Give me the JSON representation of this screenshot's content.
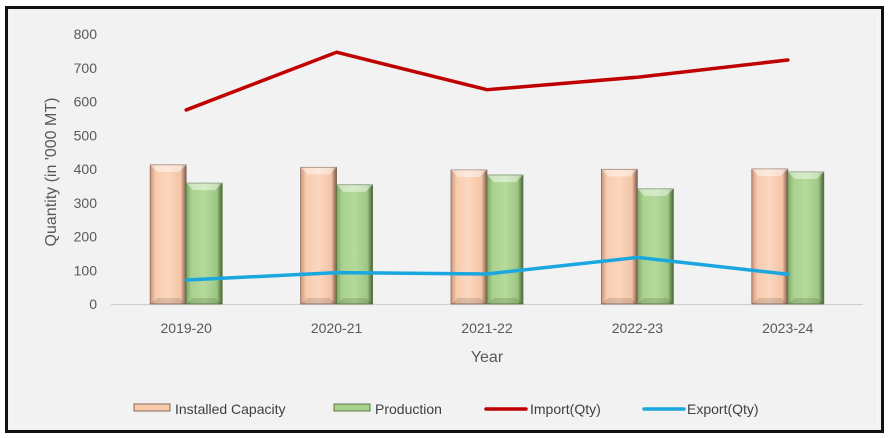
{
  "chart_data": {
    "type": "bar",
    "title": "",
    "xlabel": "Year",
    "ylabel": "Quantity (in '000 MT)",
    "ylim": [
      0,
      800
    ],
    "yticks": [
      0,
      100,
      200,
      300,
      400,
      500,
      600,
      700,
      800
    ],
    "ytick_labels": [
      "0",
      "100",
      "200",
      "300",
      "400",
      "500",
      "600",
      "700",
      "800"
    ],
    "grid": false,
    "categories": [
      "2019-20",
      "2020-21",
      "2021-22",
      "2022-23",
      "2023-24"
    ],
    "series": [
      {
        "name": "Installed Capacity",
        "kind": "bar",
        "color": "#f8cbad",
        "edge": "#8c6a5a",
        "values": [
          412,
          405,
          397,
          399,
          400
        ]
      },
      {
        "name": "Production",
        "kind": "bar",
        "color": "#a9d18e",
        "edge": "#5a7a45",
        "values": [
          358,
          353,
          382,
          341,
          391
        ]
      },
      {
        "name": "Import(Qty)",
        "kind": "line",
        "color": "#c00000",
        "values": [
          575,
          746,
          635,
          672,
          723
        ]
      },
      {
        "name": "Export(Qty)",
        "kind": "line",
        "color": "#1aa7e0",
        "values": [
          71,
          93,
          89,
          138,
          88
        ]
      }
    ],
    "legend_position": "bottom"
  }
}
